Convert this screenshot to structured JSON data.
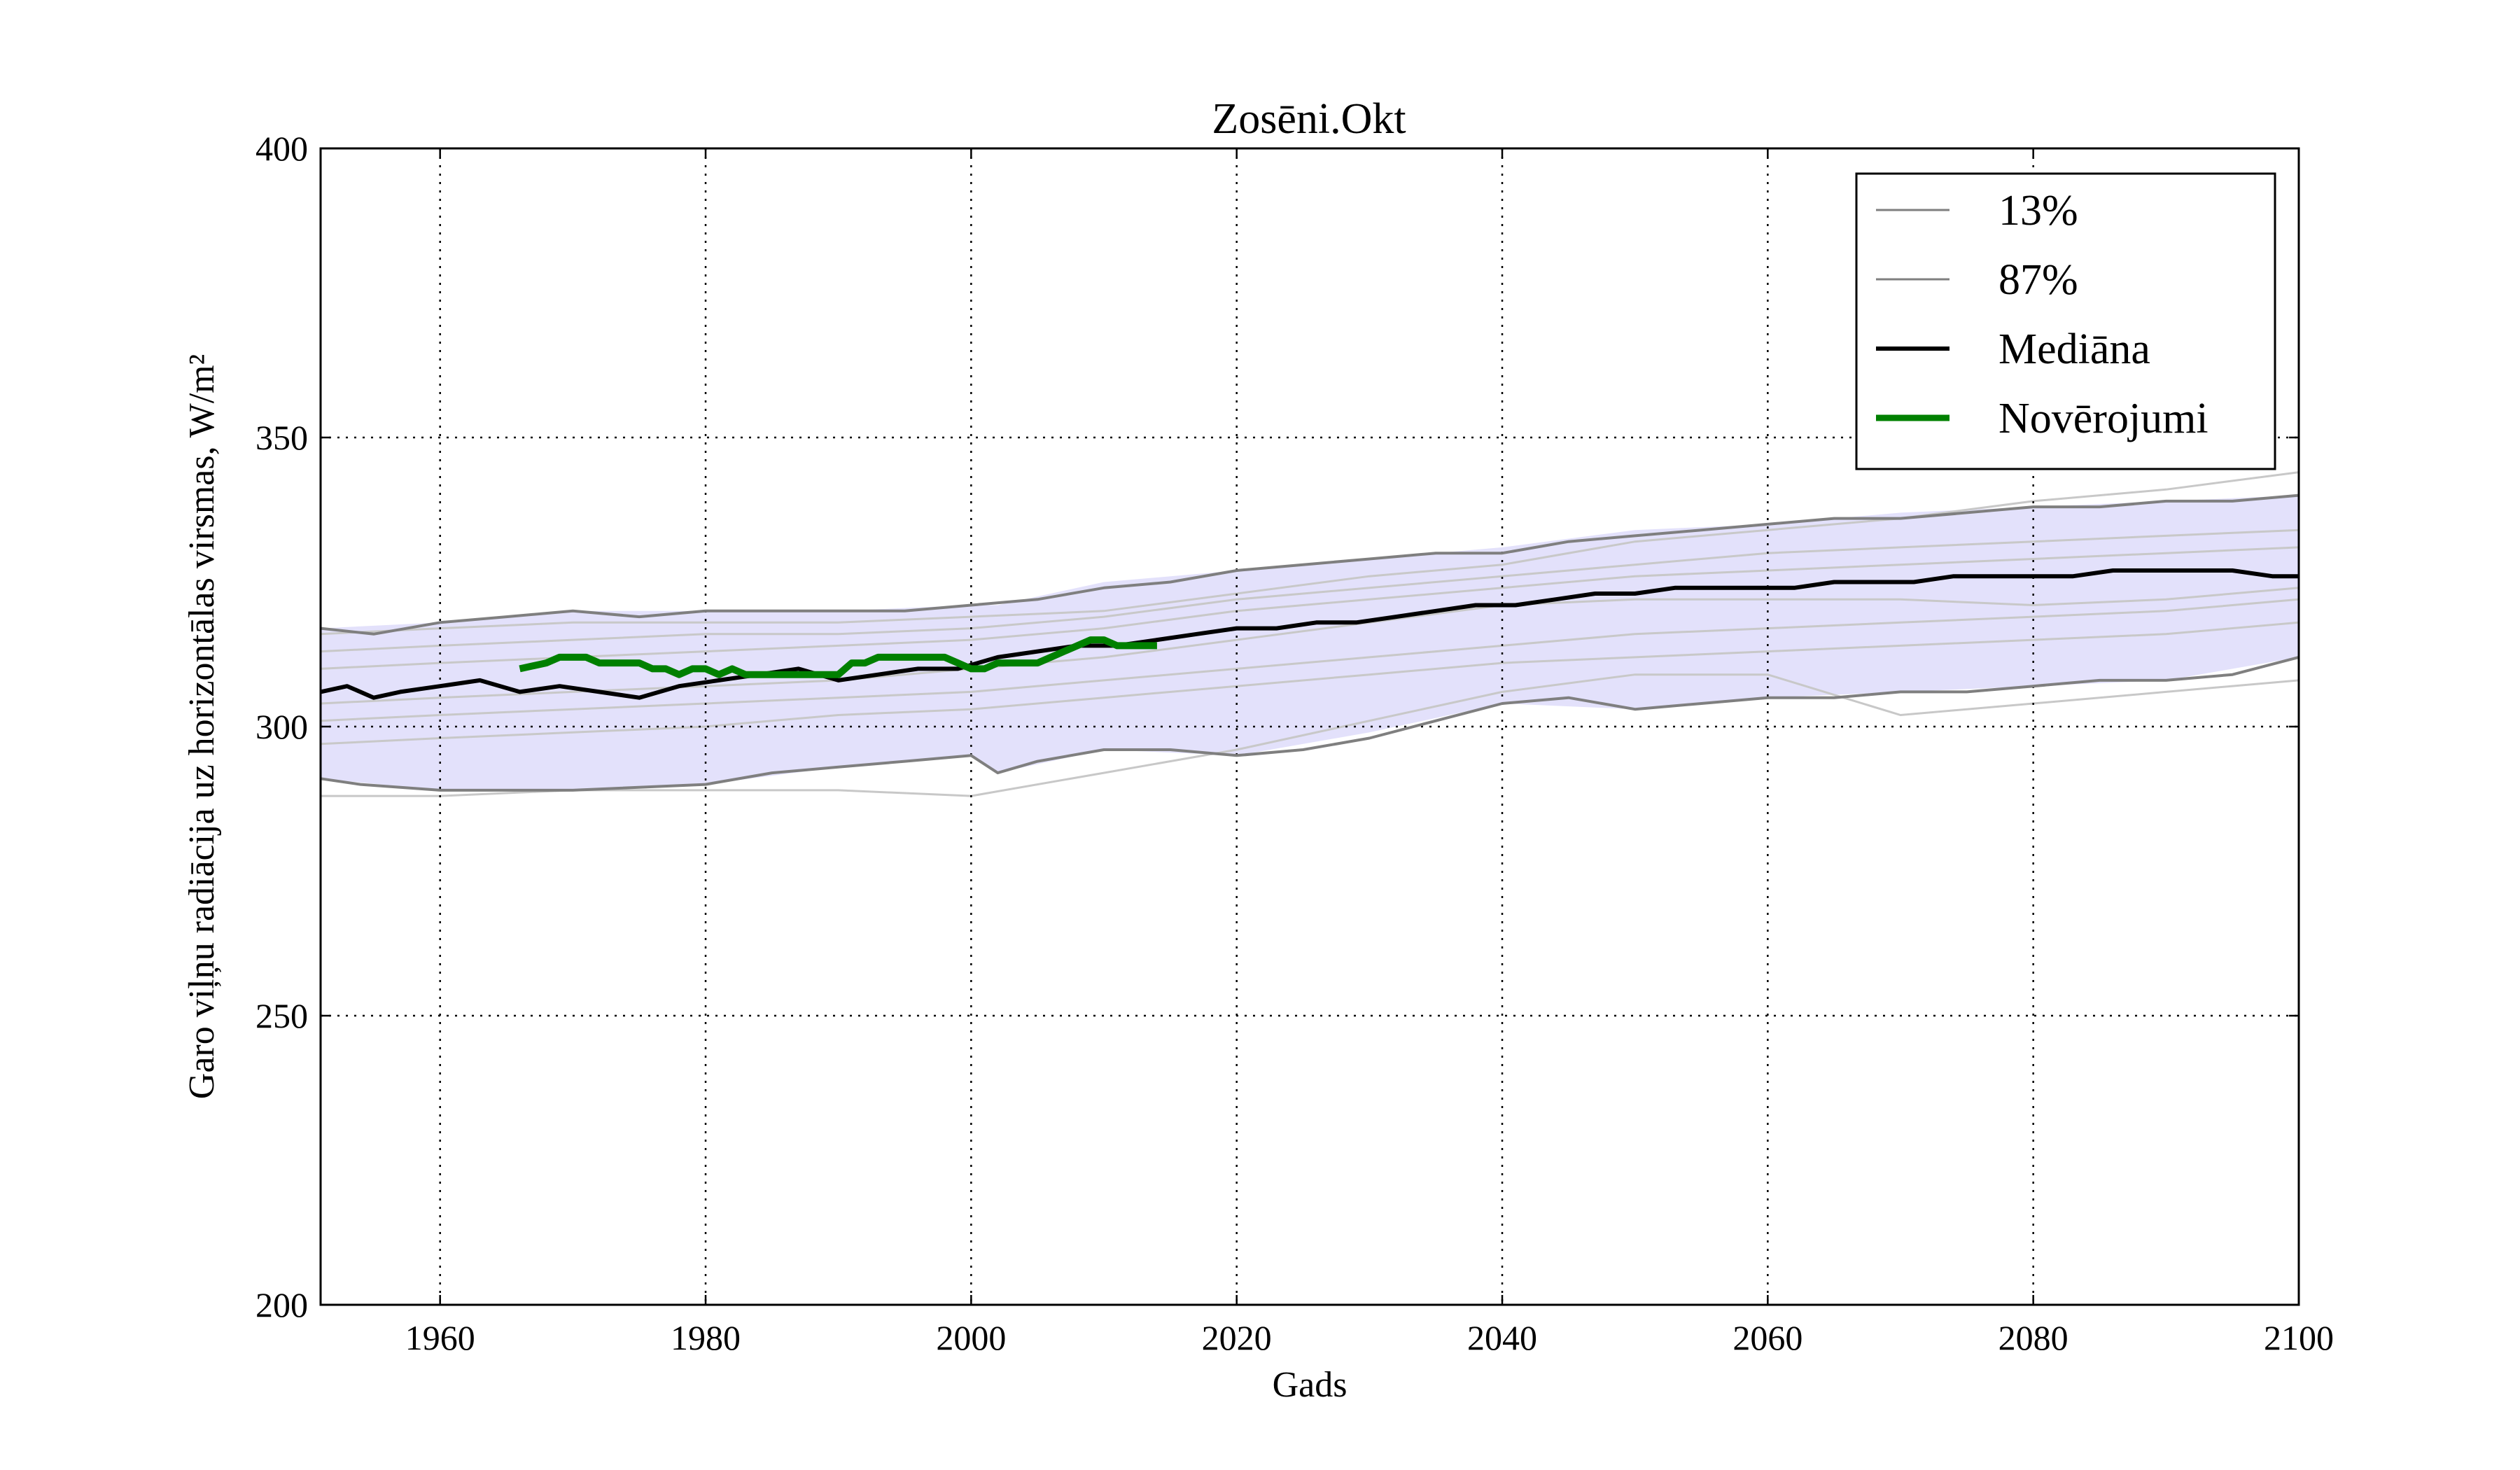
{
  "chart_data": {
    "type": "line",
    "title": "Zosēni.Okt",
    "xlabel": "Gads",
    "ylabel": "Garo viļņu radiācija uz horizontālas virsmas, W/m²",
    "xlim": [
      1951,
      2100
    ],
    "ylim": [
      200,
      400
    ],
    "xticks": [
      1960,
      1980,
      2000,
      2020,
      2040,
      2060,
      2080,
      2100
    ],
    "yticks": [
      200,
      250,
      300,
      350,
      400
    ],
    "grid": true,
    "legend_position": "top-right",
    "band": {
      "color": "#e3e1fb",
      "x": [
        1951,
        1960,
        1970,
        1980,
        1990,
        2000,
        2002,
        2010,
        2020,
        2030,
        2040,
        2050,
        2060,
        2070,
        2080,
        2090,
        2100
      ],
      "lower": [
        291,
        289,
        289,
        290,
        293,
        295,
        292,
        296,
        295,
        299,
        304,
        303,
        305,
        306,
        307,
        308,
        312
      ],
      "upper": [
        317,
        318,
        320,
        320,
        320,
        321,
        321,
        325,
        327,
        329,
        331,
        334,
        335,
        337,
        338,
        339,
        340
      ]
    },
    "series": [
      {
        "name": "13%",
        "color": "#7f7f7f",
        "x": [
          1951,
          1954,
          1960,
          1970,
          1980,
          1985,
          1990,
          1995,
          2000,
          2002,
          2005,
          2010,
          2015,
          2020,
          2025,
          2030,
          2035,
          2040,
          2045,
          2050,
          2055,
          2060,
          2065,
          2070,
          2075,
          2080,
          2085,
          2090,
          2095,
          2100
        ],
        "y": [
          291,
          290,
          289,
          289,
          290,
          292,
          293,
          294,
          295,
          292,
          294,
          296,
          296,
          295,
          296,
          298,
          301,
          304,
          305,
          303,
          304,
          305,
          305,
          306,
          306,
          307,
          308,
          308,
          309,
          312
        ]
      },
      {
        "name": "87%",
        "color": "#7f7f7f",
        "x": [
          1951,
          1955,
          1960,
          1965,
          1970,
          1975,
          1980,
          1985,
          1990,
          1995,
          2000,
          2005,
          2010,
          2015,
          2020,
          2025,
          2030,
          2035,
          2040,
          2045,
          2050,
          2055,
          2060,
          2065,
          2070,
          2075,
          2080,
          2085,
          2090,
          2095,
          2100
        ],
        "y": [
          317,
          316,
          318,
          319,
          320,
          319,
          320,
          320,
          320,
          320,
          321,
          322,
          324,
          325,
          327,
          328,
          329,
          330,
          330,
          332,
          333,
          334,
          335,
          336,
          336,
          337,
          338,
          338,
          339,
          339,
          340
        ]
      },
      {
        "name": "Mediāna",
        "color": "#000000",
        "x": [
          1951,
          1953,
          1955,
          1957,
          1960,
          1963,
          1966,
          1969,
          1972,
          1975,
          1978,
          1981,
          1984,
          1987,
          1990,
          1993,
          1996,
          1999,
          2002,
          2005,
          2008,
          2011,
          2014,
          2017,
          2020,
          2023,
          2026,
          2029,
          2032,
          2035,
          2038,
          2041,
          2044,
          2047,
          2050,
          2053,
          2056,
          2059,
          2062,
          2065,
          2068,
          2071,
          2074,
          2077,
          2080,
          2083,
          2086,
          2089,
          2092,
          2095,
          2098,
          2100
        ],
        "y": [
          306,
          307,
          305,
          306,
          307,
          308,
          306,
          307,
          306,
          305,
          307,
          308,
          309,
          310,
          308,
          309,
          310,
          310,
          312,
          313,
          314,
          314,
          315,
          316,
          317,
          317,
          318,
          318,
          319,
          320,
          321,
          321,
          322,
          323,
          323,
          324,
          324,
          324,
          324,
          325,
          325,
          325,
          326,
          326,
          326,
          326,
          327,
          327,
          327,
          327,
          326,
          326
        ]
      },
      {
        "name": "Novērojumi",
        "color": "#008000",
        "x": [
          1966,
          1968,
          1969,
          1970,
          1971,
          1972,
          1973,
          1975,
          1976,
          1977,
          1978,
          1979,
          1980,
          1981,
          1982,
          1983,
          1984,
          1985,
          1986,
          1987,
          1988,
          1989,
          1990,
          1991,
          1992,
          1993,
          1994,
          1995,
          1996,
          1997,
          1998,
          1999,
          2000,
          2001,
          2002,
          2003,
          2004,
          2005,
          2006,
          2007,
          2008,
          2009,
          2010,
          2011,
          2012,
          2013,
          2014
        ],
        "y": [
          310,
          311,
          312,
          312,
          312,
          311,
          311,
          311,
          310,
          310,
          309,
          310,
          310,
          309,
          310,
          309,
          309,
          309,
          309,
          309,
          309,
          309,
          309,
          311,
          311,
          312,
          312,
          312,
          312,
          312,
          312,
          311,
          310,
          310,
          311,
          311,
          311,
          311,
          312,
          313,
          314,
          315,
          315,
          314,
          314,
          314,
          314
        ]
      }
    ],
    "ensemble": {
      "color": "#c8c8c8",
      "x": [
        1951,
        1960,
        1970,
        1980,
        1990,
        2000,
        2010,
        2020,
        2030,
        2040,
        2050,
        2060,
        2070,
        2080,
        2090,
        2100
      ],
      "members": [
        [
          288,
          288,
          289,
          289,
          289,
          288,
          292,
          296,
          301,
          306,
          309,
          309,
          302,
          304,
          306,
          308
        ],
        [
          297,
          298,
          299,
          300,
          302,
          303,
          305,
          307,
          309,
          311,
          312,
          313,
          314,
          315,
          316,
          318
        ],
        [
          301,
          302,
          303,
          304,
          305,
          306,
          308,
          310,
          312,
          314,
          316,
          317,
          318,
          319,
          320,
          322
        ],
        [
          304,
          305,
          306,
          307,
          308,
          310,
          312,
          315,
          318,
          321,
          322,
          322,
          322,
          321,
          322,
          324
        ],
        [
          310,
          311,
          312,
          313,
          314,
          315,
          317,
          320,
          322,
          324,
          326,
          327,
          328,
          329,
          330,
          331
        ],
        [
          313,
          314,
          315,
          316,
          316,
          317,
          319,
          322,
          324,
          326,
          328,
          330,
          331,
          332,
          333,
          334
        ],
        [
          316,
          317,
          318,
          318,
          318,
          319,
          320,
          323,
          326,
          328,
          332,
          334,
          336,
          339,
          341,
          344
        ]
      ]
    },
    "legend": [
      {
        "label": "13%",
        "color": "#7f7f7f",
        "width": 3
      },
      {
        "label": "87%",
        "color": "#7f7f7f",
        "width": 3
      },
      {
        "label": "Mediāna",
        "color": "#000000",
        "width": 6
      },
      {
        "label": "Novērojumi",
        "color": "#008000",
        "width": 9
      }
    ]
  }
}
